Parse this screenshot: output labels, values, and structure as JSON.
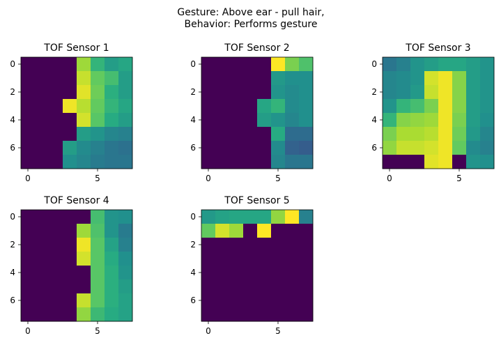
{
  "figure": {
    "title_line1": "Gesture: Above ear - pull hair,",
    "title_line2": "Behavior: Performs gesture"
  },
  "chart_data": [
    {
      "type": "heatmap",
      "title": "TOF Sensor 1",
      "colormap": "viridis",
      "x_ticks": [
        "0",
        "5"
      ],
      "y_ticks": [
        "0",
        "2",
        "4",
        "6"
      ],
      "z": [
        [
          0,
          0,
          0,
          0,
          0.86,
          0.66,
          0.56,
          0.6
        ],
        [
          0,
          0,
          0,
          0,
          0.92,
          0.76,
          0.7,
          0.56
        ],
        [
          0,
          0,
          0,
          0,
          0.96,
          0.78,
          0.64,
          0.56
        ],
        [
          0,
          0,
          0,
          0.98,
          0.9,
          0.76,
          0.66,
          0.6
        ],
        [
          0,
          0,
          0,
          0,
          0.94,
          0.74,
          0.62,
          0.56
        ],
        [
          0,
          0,
          0,
          0,
          0.56,
          0.52,
          0.46,
          0.44
        ],
        [
          0,
          0,
          0,
          0.56,
          0.48,
          0.44,
          0.4,
          0.38
        ],
        [
          0,
          0,
          0,
          0.5,
          0.46,
          0.42,
          0.4,
          0.4
        ]
      ]
    },
    {
      "type": "heatmap",
      "title": "TOF Sensor 2",
      "colormap": "viridis",
      "x_ticks": [
        "0",
        "5"
      ],
      "y_ticks": [
        "0",
        "2",
        "4",
        "6"
      ],
      "z": [
        [
          0,
          0,
          0,
          0,
          0,
          1.0,
          0.8,
          0.72
        ],
        [
          0,
          0,
          0,
          0,
          0,
          0.54,
          0.5,
          0.5
        ],
        [
          0,
          0,
          0,
          0,
          0,
          0.52,
          0.48,
          0.5
        ],
        [
          0,
          0,
          0,
          0,
          0.6,
          0.66,
          0.48,
          0.5
        ],
        [
          0,
          0,
          0,
          0,
          0.56,
          0.52,
          0.46,
          0.5
        ],
        [
          0,
          0,
          0,
          0,
          0,
          0.62,
          0.36,
          0.36
        ],
        [
          0,
          0,
          0,
          0,
          0,
          0.48,
          0.32,
          0.3
        ],
        [
          0,
          0,
          0,
          0,
          0,
          0.46,
          0.4,
          0.4
        ]
      ]
    },
    {
      "type": "heatmap",
      "title": "TOF Sensor 3",
      "colormap": "viridis",
      "x_ticks": [
        "0",
        "5"
      ],
      "y_ticks": [
        "0",
        "2",
        "4",
        "6"
      ],
      "z": [
        [
          0.4,
          0.44,
          0.52,
          0.56,
          0.6,
          0.6,
          0.56,
          0.52
        ],
        [
          0.46,
          0.48,
          0.52,
          0.94,
          0.98,
          0.82,
          0.56,
          0.52
        ],
        [
          0.46,
          0.48,
          0.54,
          0.92,
          0.98,
          0.82,
          0.56,
          0.52
        ],
        [
          0.52,
          0.66,
          0.7,
          0.8,
          0.98,
          0.82,
          0.56,
          0.52
        ],
        [
          0.66,
          0.82,
          0.84,
          0.86,
          0.98,
          0.8,
          0.56,
          0.5
        ],
        [
          0.8,
          0.88,
          0.88,
          0.9,
          0.98,
          0.78,
          0.54,
          0.46
        ],
        [
          0.84,
          0.92,
          0.92,
          0.94,
          0.98,
          0.76,
          0.48,
          0.44
        ],
        [
          0,
          0,
          0,
          0.96,
          0.98,
          0,
          0.52,
          0.5
        ]
      ]
    },
    {
      "type": "heatmap",
      "title": "TOF Sensor 4",
      "colormap": "viridis",
      "x_ticks": [
        "0",
        "5"
      ],
      "y_ticks": [
        "0",
        "2",
        "4",
        "6"
      ],
      "z": [
        [
          0,
          0,
          0,
          0,
          0,
          0.7,
          0.52,
          0.5
        ],
        [
          0,
          0,
          0,
          0,
          0.86,
          0.72,
          0.52,
          0.42
        ],
        [
          0,
          0,
          0,
          0,
          0.98,
          0.74,
          0.58,
          0.44
        ],
        [
          0,
          0,
          0,
          0,
          0.94,
          0.74,
          0.62,
          0.5
        ],
        [
          0,
          0,
          0,
          0,
          0,
          0.74,
          0.64,
          0.52
        ],
        [
          0,
          0,
          0,
          0,
          0,
          0.74,
          0.64,
          0.56
        ],
        [
          0,
          0,
          0,
          0,
          0.92,
          0.74,
          0.64,
          0.58
        ],
        [
          0,
          0,
          0,
          0,
          0.84,
          0.68,
          0.62,
          0.58
        ]
      ]
    },
    {
      "type": "heatmap",
      "title": "TOF Sensor 5",
      "colormap": "viridis",
      "x_ticks": [
        "0",
        "5"
      ],
      "y_ticks": [
        "0",
        "2",
        "4",
        "6"
      ],
      "z": [
        [
          0.54,
          0.58,
          0.6,
          0.6,
          0.6,
          0.84,
          1.0,
          0.44
        ],
        [
          0.76,
          0.94,
          0.86,
          0,
          1.0,
          0,
          0,
          0
        ],
        [
          0,
          0,
          0,
          0,
          0,
          0,
          0,
          0
        ],
        [
          0,
          0,
          0,
          0,
          0,
          0,
          0,
          0
        ],
        [
          0,
          0,
          0,
          0,
          0,
          0,
          0,
          0
        ],
        [
          0,
          0,
          0,
          0,
          0,
          0,
          0,
          0
        ],
        [
          0,
          0,
          0,
          0,
          0,
          0,
          0,
          0
        ],
        [
          0,
          0,
          0,
          0,
          0,
          0,
          0,
          0
        ]
      ]
    }
  ]
}
